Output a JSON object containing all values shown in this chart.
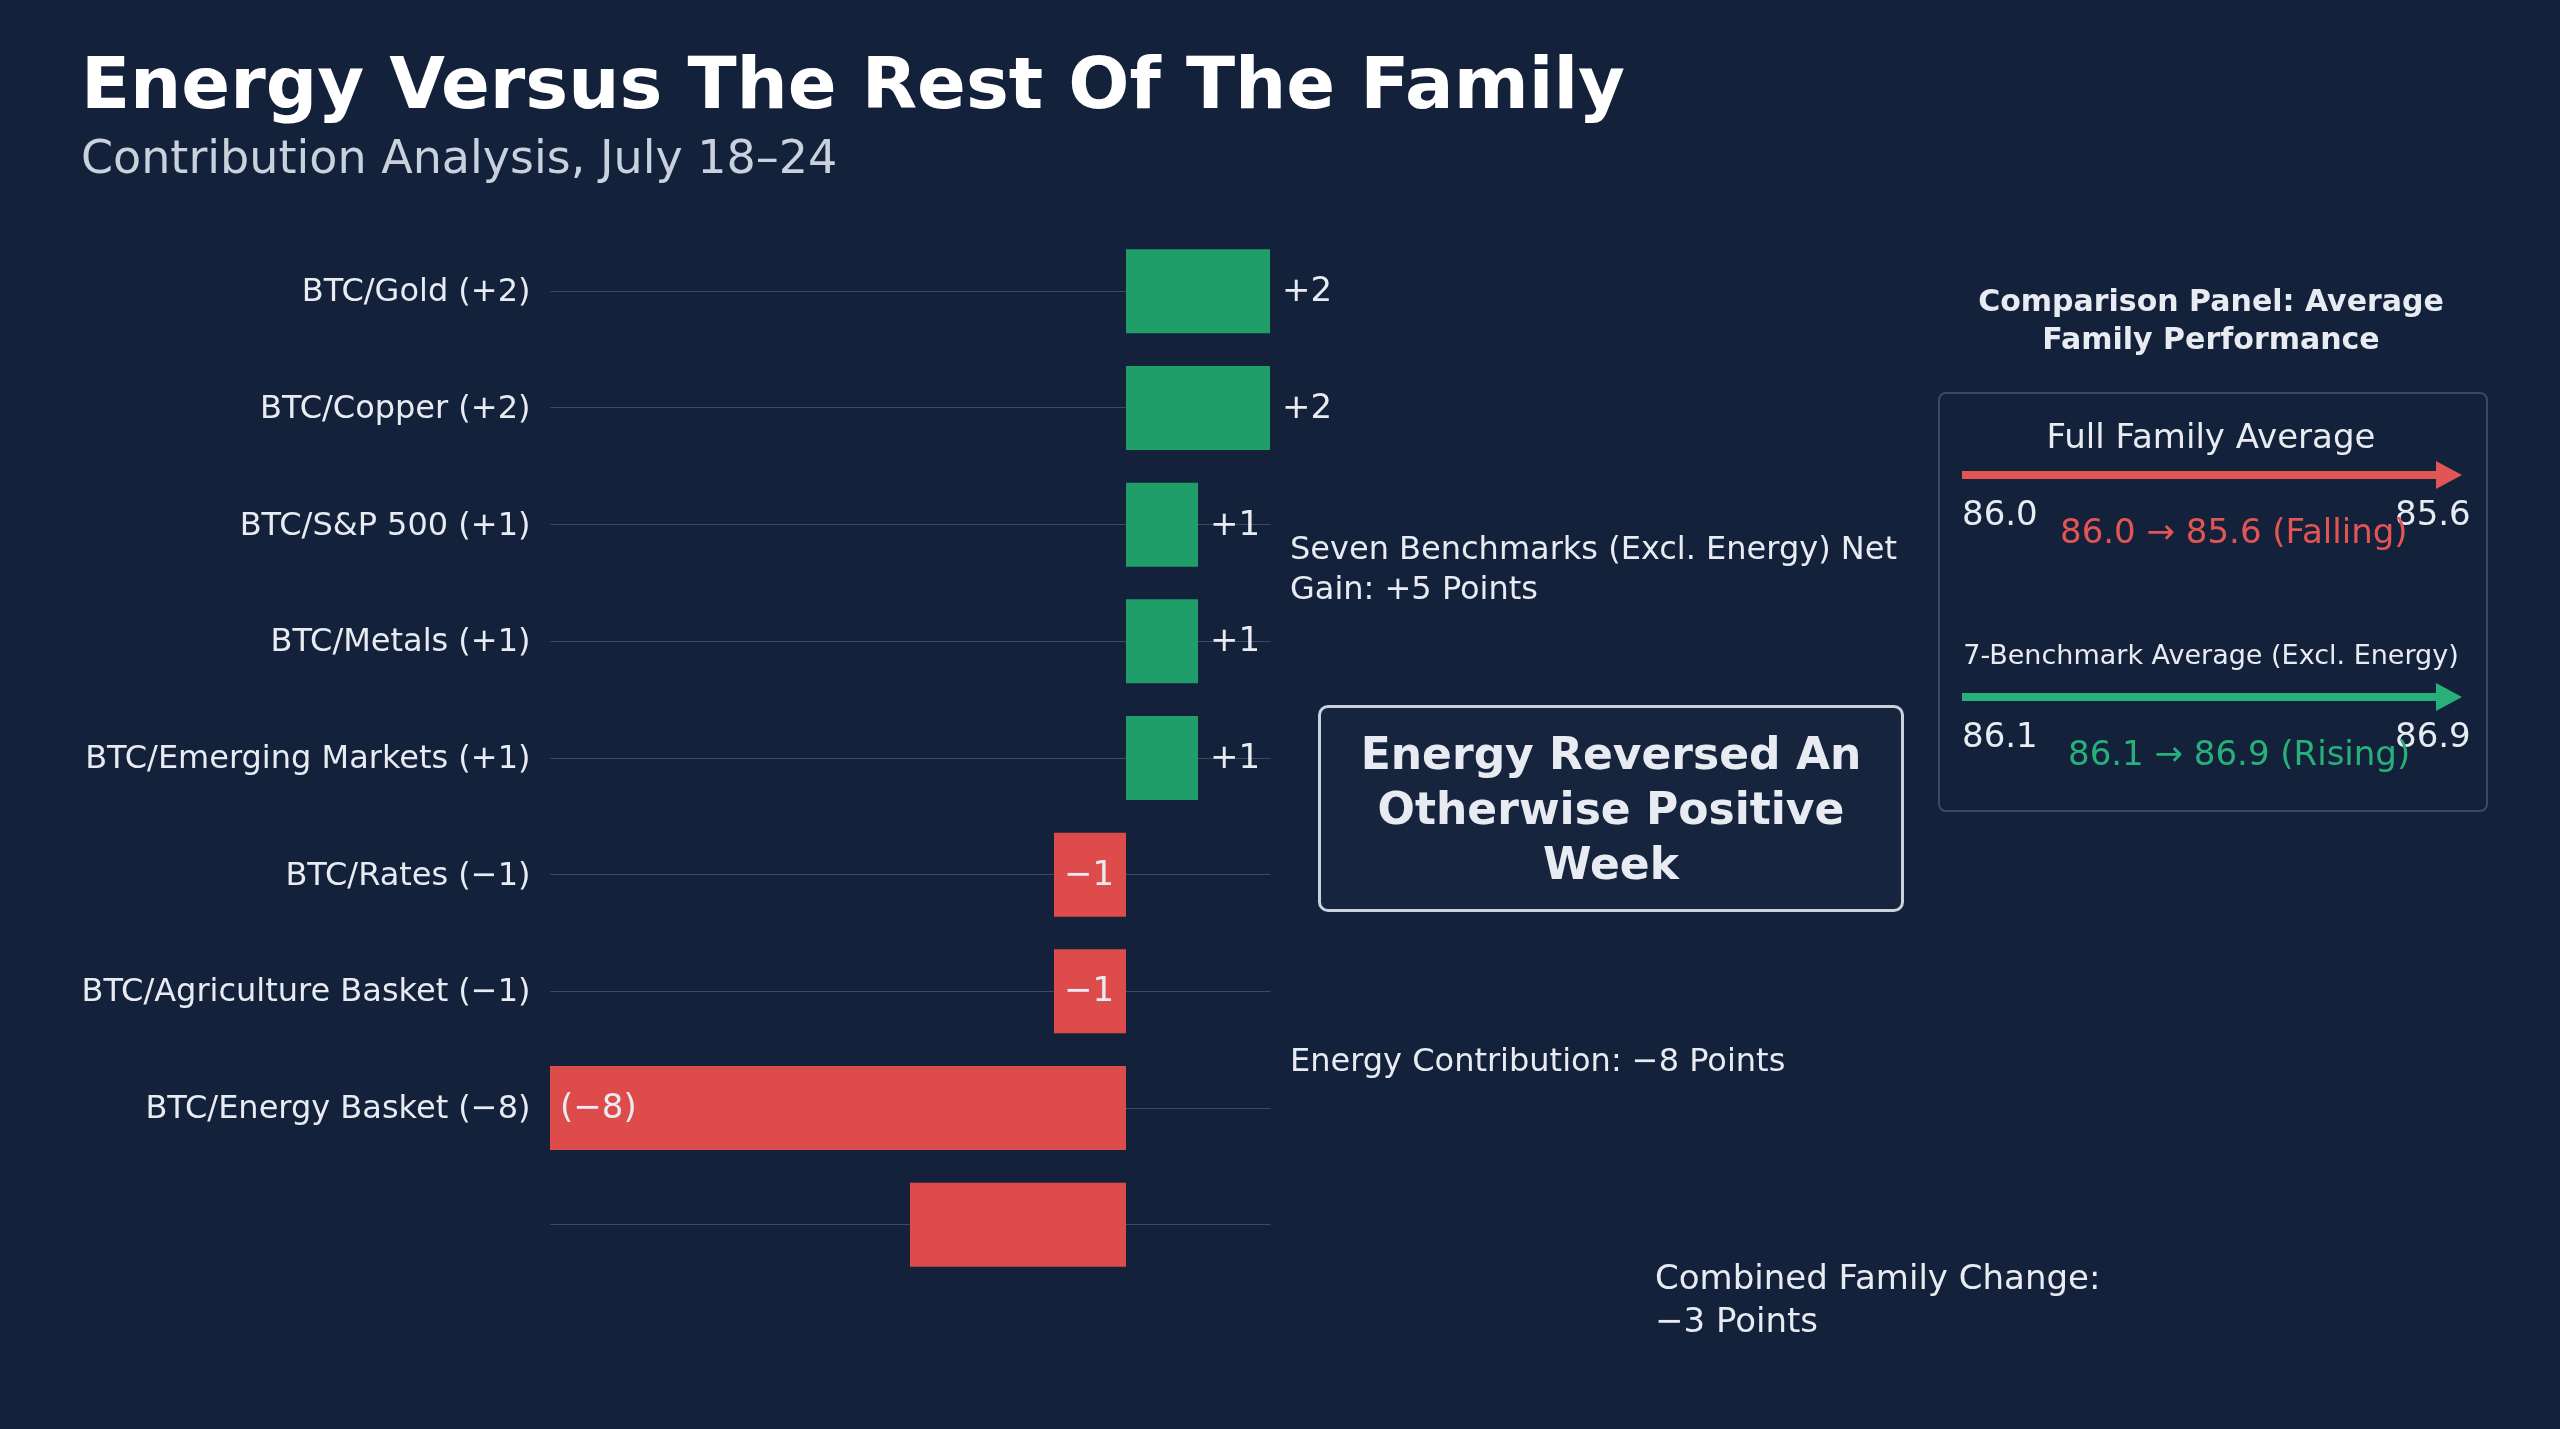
{
  "chart_data": {
    "type": "bar",
    "orientation": "horizontal",
    "title": "Energy Versus The Rest Of The Family",
    "subtitle": "Contribution Analysis, July 18–24",
    "categories": [
      "BTC/Gold (+2)",
      "BTC/Copper (+2)",
      "BTC/S&P 500 (+1)",
      "BTC/Metals (+1)",
      "BTC/Emerging Markets (+1)",
      "BTC/Rates (−1)",
      "BTC/Agriculture Basket (−1)",
      "BTC/Energy Basket (−8)",
      null
    ],
    "values": [
      2,
      2,
      1,
      1,
      1,
      -1,
      -1,
      -8,
      -3
    ],
    "colors": [
      "#1f9e6a",
      "#1f9e6a",
      "#1f9e6a",
      "#1f9e6a",
      "#1f9e6a",
      "#de4b4b",
      "#de4b4b",
      "#de4b4b",
      "#de4b4b"
    ],
    "value_labels": [
      "+2",
      "+2",
      "+1",
      "+1",
      "+1",
      "−1",
      "−1",
      "(−8)",
      null
    ],
    "grid": "y",
    "annotations": [
      "Seven Benchmarks (Excl. Energy) Net Gain: +5 Points",
      "Energy Reversed An Otherwise Positive Week",
      "Energy Contribution: −8 Points",
      "Combined Family Change: −3 Points",
      "Comparison Panel: Average Family Performance",
      "Full Family Average",
      "86.0",
      "85.6",
      "86.0 → 85.6 (Falling)",
      "7-Benchmark Average (Excl. Energy)",
      "86.1",
      "86.9",
      "86.1 → 86.9 (Rising)"
    ]
  }
}
